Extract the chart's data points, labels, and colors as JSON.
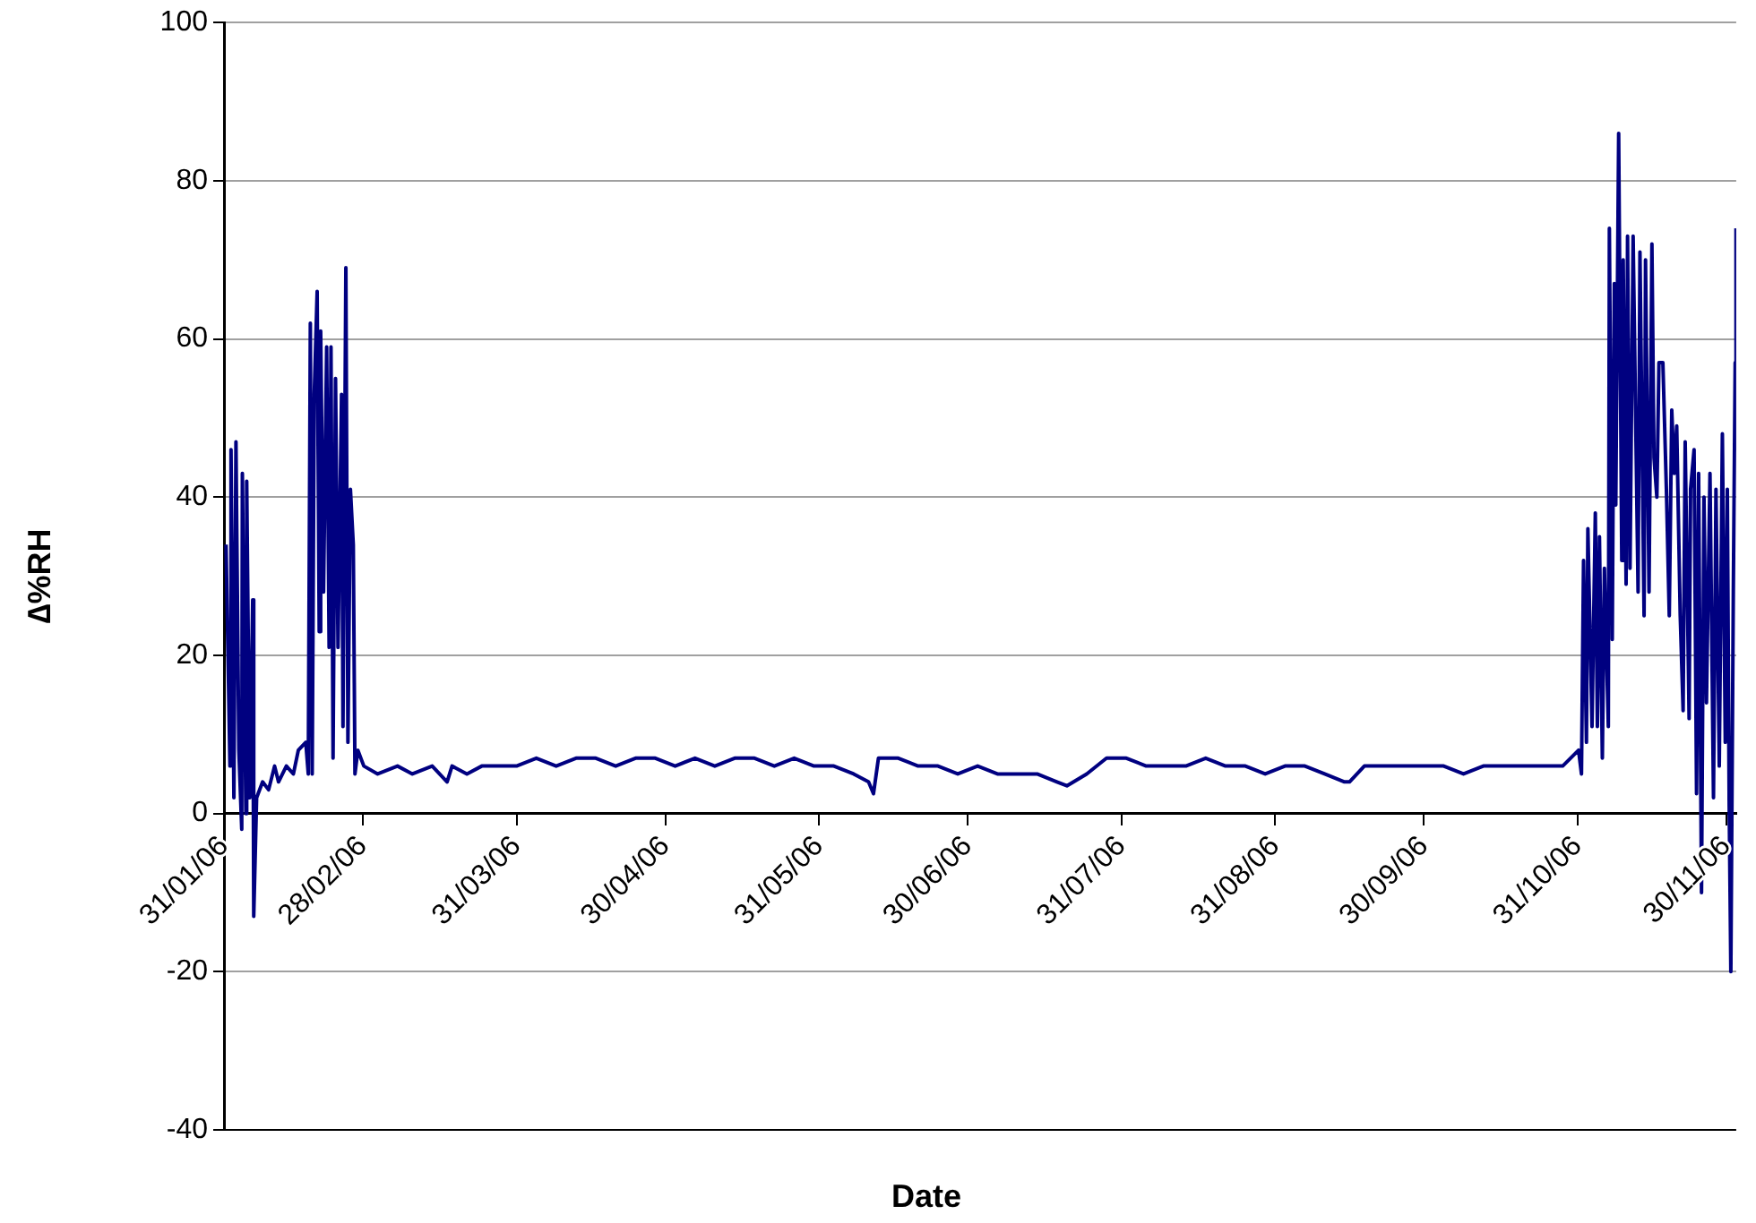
{
  "chart_data": {
    "type": "line",
    "xlabel": "Date",
    "ylabel": "∆%RH",
    "ylim": [
      -40,
      100
    ],
    "yticks": [
      -40,
      -20,
      0,
      20,
      40,
      60,
      80,
      100
    ],
    "xlim": [
      "2006-01-31",
      "2006-12-02"
    ],
    "xticks": [
      {
        "value": "2006-01-31",
        "label": "31/01/06"
      },
      {
        "value": "2006-02-28",
        "label": "28/02/06"
      },
      {
        "value": "2006-03-31",
        "label": "31/03/06"
      },
      {
        "value": "2006-04-30",
        "label": "30/04/06"
      },
      {
        "value": "2006-05-31",
        "label": "31/05/06"
      },
      {
        "value": "2006-06-30",
        "label": "30/06/06"
      },
      {
        "value": "2006-07-31",
        "label": "31/07/06"
      },
      {
        "value": "2006-08-31",
        "label": "31/08/06"
      },
      {
        "value": "2006-09-30",
        "label": "30/09/06"
      },
      {
        "value": "2006-10-31",
        "label": "31/10/06"
      },
      {
        "value": "2006-11-30",
        "label": "30/11/06"
      }
    ],
    "grid": "y",
    "marker": "none",
    "line_style": "solid",
    "series": [
      {
        "color": "#000080",
        "x": [
          "2006-01-31T10:00",
          "2006-02-01T05:00",
          "2006-02-01T10:00",
          "2006-02-02T00:00",
          "2006-02-02T10:00",
          "2006-02-03T00:00",
          "2006-02-03T14:00",
          "2006-02-03T17:00",
          "2006-02-04T10:00",
          "2006-02-04T14:00",
          "2006-02-05T05:00",
          "2006-02-05T19:00",
          "2006-02-06T00:00",
          "2006-02-06T14:00",
          "2006-02-07T19:00",
          "2006-02-09T00:00",
          "2006-02-10T05:00",
          "2006-02-11T00:00",
          "2006-02-12T14:00",
          "2006-02-14T00:00",
          "2006-02-15T00:00",
          "2006-02-16T12:00",
          "2006-02-17T00:00",
          "2006-02-17T10:00",
          "2006-02-17T19:00",
          "2006-02-18T05:00",
          "2006-02-18T19:00",
          "2006-02-19T05:00",
          "2006-02-19T12:00",
          "2006-02-20T02:00",
          "2006-02-20T17:00",
          "2006-02-21T05:00",
          "2006-02-21T14:00",
          "2006-02-22T00:00",
          "2006-02-22T12:00",
          "2006-02-23T00:00",
          "2006-02-23T17:00",
          "2006-02-24T00:00",
          "2006-02-24T14:00",
          "2006-02-25T00:00",
          "2006-02-25T12:00",
          "2006-02-26T02:00",
          "2006-02-26T10:00",
          "2006-02-27T00:00",
          "2006-02-28T05:00",
          "2006-03-03",
          "2006-03-07",
          "2006-03-10",
          "2006-03-14",
          "2006-03-17",
          "2006-03-18",
          "2006-03-21",
          "2006-03-24",
          "2006-03-28",
          "2006-03-31",
          "2006-04-04",
          "2006-04-08",
          "2006-04-12",
          "2006-04-16",
          "2006-04-20",
          "2006-04-24",
          "2006-04-28",
          "2006-05-02",
          "2006-05-06",
          "2006-05-10",
          "2006-05-14",
          "2006-05-18",
          "2006-05-22",
          "2006-05-26",
          "2006-05-30",
          "2006-06-03",
          "2006-06-07",
          "2006-06-10",
          "2006-06-11",
          "2006-06-12",
          "2006-06-16",
          "2006-06-20",
          "2006-06-24",
          "2006-06-28",
          "2006-07-02",
          "2006-07-06",
          "2006-07-10",
          "2006-07-14",
          "2006-07-18",
          "2006-07-20",
          "2006-07-24",
          "2006-07-28",
          "2006-08-01",
          "2006-08-05",
          "2006-08-09",
          "2006-08-13",
          "2006-08-17",
          "2006-08-21",
          "2006-08-25",
          "2006-08-29",
          "2006-09-02",
          "2006-09-06",
          "2006-09-10",
          "2006-09-14",
          "2006-09-15",
          "2006-09-18",
          "2006-09-22",
          "2006-09-26",
          "2006-09-30",
          "2006-10-04",
          "2006-10-08",
          "2006-10-12",
          "2006-10-16",
          "2006-10-20",
          "2006-10-24",
          "2006-10-28",
          "2006-10-31T05:00",
          "2006-10-31T19:00",
          "2006-11-01T05:00",
          "2006-11-01T19:00",
          "2006-11-02T02:00",
          "2006-11-02T22:00",
          "2006-11-03T14:00",
          "2006-11-04T00:00",
          "2006-11-04T10:00",
          "2006-11-05T00:00",
          "2006-11-05T10:00",
          "2006-11-06T05:00",
          "2006-11-06T10:00",
          "2006-11-07T00:00",
          "2006-11-07T10:00",
          "2006-11-07T17:00",
          "2006-11-08T07:00",
          "2006-11-08T22:00",
          "2006-11-09T05:00",
          "2006-11-09T19:00",
          "2006-11-10T02:00",
          "2006-11-10T14:00",
          "2006-11-11T05:00",
          "2006-11-12T05:00",
          "2006-11-12T14:00",
          "2006-11-13T10:00",
          "2006-11-13T17:00",
          "2006-11-14T10:00",
          "2006-11-15T00:00",
          "2006-11-15T10:00",
          "2006-11-16T00:00",
          "2006-11-16T10:00",
          "2006-11-17T05:00",
          "2006-11-17T22:00",
          "2006-11-18T12:00",
          "2006-11-19T00:00",
          "2006-11-19T12:00",
          "2006-11-20T00:00",
          "2006-11-20T17:00",
          "2006-11-21T07:00",
          "2006-11-21T17:00",
          "2006-11-22T12:00",
          "2006-11-22T19:00",
          "2006-11-23T12:00",
          "2006-11-24T00:00",
          "2006-11-24T10:00",
          "2006-11-25T00:00",
          "2006-11-25T12:00",
          "2006-11-26T00:00",
          "2006-11-26T17:00",
          "2006-11-27T10:00",
          "2006-11-27T22:00",
          "2006-11-28T14:00",
          "2006-11-29T05:00",
          "2006-11-29T19:00",
          "2006-11-30T05:00",
          "2006-11-30T14:00",
          "2006-11-30T22:00",
          "2006-12-01T10:00",
          "2006-12-01T19:00",
          "2006-12-01T23:00"
        ],
        "values": [
          34,
          6,
          46,
          2,
          47,
          8,
          -2,
          43,
          0,
          42,
          2,
          27,
          -13,
          2,
          4,
          3,
          6,
          4,
          6,
          5,
          8,
          9,
          5,
          62,
          5,
          53,
          66,
          23,
          61,
          28,
          59,
          21,
          59,
          7,
          55,
          21,
          53,
          11,
          69,
          9,
          41,
          34,
          5,
          8,
          6,
          5,
          6,
          5,
          6,
          4,
          6,
          5,
          6,
          6,
          6,
          7,
          6,
          7,
          7,
          6,
          7,
          7,
          6,
          7,
          6,
          7,
          7,
          6,
          7,
          6,
          6,
          5,
          4,
          2.5,
          7,
          7,
          6,
          6,
          5,
          6,
          5,
          5,
          5,
          4,
          3.5,
          5,
          7,
          7,
          6,
          6,
          6,
          7,
          6,
          6,
          5,
          6,
          6,
          5,
          4,
          4,
          6,
          6,
          6,
          6,
          6,
          5,
          6,
          6,
          6,
          6,
          6,
          8,
          5,
          32,
          9,
          36,
          11,
          38,
          11,
          35,
          7,
          31,
          11,
          74,
          22,
          67,
          39,
          86,
          32,
          70,
          29,
          73,
          31,
          73,
          28,
          71,
          25,
          70,
          28,
          72,
          45,
          40,
          57,
          57,
          41,
          25,
          51,
          43,
          49,
          25,
          13,
          47,
          12,
          41,
          46,
          2.5,
          43,
          -10,
          40,
          14,
          43,
          2,
          41,
          6,
          48,
          9,
          41,
          1,
          -20,
          28,
          57,
          74
        ]
      }
    ]
  }
}
